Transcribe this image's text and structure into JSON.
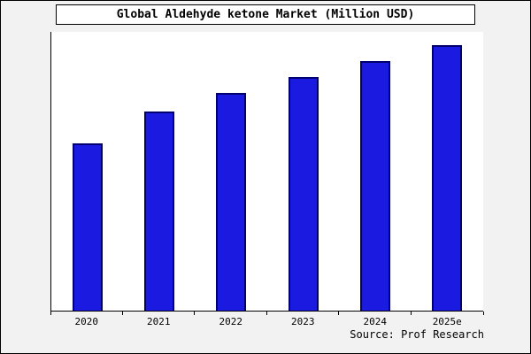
{
  "title": "Global Aldehyde ketone Market (Million USD)",
  "source": "Source: Prof Research",
  "colors": {
    "bar_fill": "#1a1ae0",
    "bar_border": "#000070",
    "background": "#f2f2f2",
    "plot_background": "#ffffff",
    "axis": "#000000"
  },
  "chart_data": {
    "type": "bar",
    "title": "Global Aldehyde ketone Market (Million USD)",
    "categories": [
      "2020",
      "2021",
      "2022",
      "2023",
      "2024",
      "2025e"
    ],
    "values": [
      63,
      75,
      82,
      88,
      94,
      100
    ],
    "xlabel": "",
    "ylabel": "",
    "ylim": [
      0,
      105
    ],
    "grid": false,
    "legend_position": "none",
    "annotations": [
      "Source: Prof Research"
    ]
  }
}
